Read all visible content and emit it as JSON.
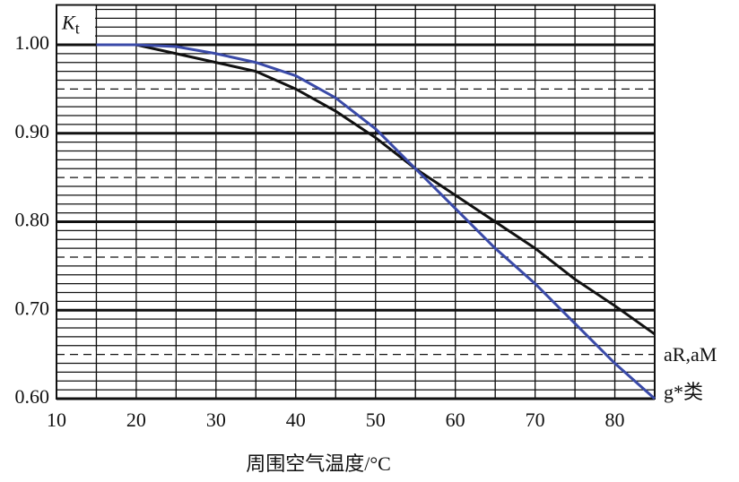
{
  "chart_data": {
    "type": "line",
    "y_label": {
      "symbol": "K",
      "subscript": "t"
    },
    "x_label": "周围空气温度/°C",
    "x": [
      15,
      20,
      25,
      30,
      35,
      40,
      45,
      50,
      55,
      60,
      65,
      70,
      75,
      80,
      85
    ],
    "series": [
      {
        "name": "aR,aM",
        "color": "#111111",
        "values": [
          1.0,
          1.0,
          0.99,
          0.98,
          0.97,
          0.95,
          0.925,
          0.895,
          0.86,
          0.83,
          0.8,
          0.77,
          0.735,
          0.705,
          0.673
        ]
      },
      {
        "name": "g*类",
        "color": "#3a4aa8",
        "values": [
          1.0,
          1.0,
          0.998,
          0.99,
          0.98,
          0.965,
          0.94,
          0.905,
          0.86,
          0.815,
          0.77,
          0.73,
          0.685,
          0.64,
          0.6
        ]
      }
    ],
    "xlim": [
      10,
      85
    ],
    "ylim": [
      0.6,
      1.045
    ],
    "xticks": [
      10,
      20,
      30,
      40,
      50,
      60,
      70,
      80
    ],
    "yticks": [
      {
        "value": 1.0,
        "label": "1.00"
      },
      {
        "value": 0.9,
        "label": "0.90"
      },
      {
        "value": 0.8,
        "label": "0.80"
      },
      {
        "value": 0.7,
        "label": "0.70"
      },
      {
        "value": 0.6,
        "label": "0.60"
      }
    ],
    "dashed_lines": [
      0.95,
      0.85,
      0.76,
      0.65
    ],
    "minor_ystep": 0.01,
    "minor_xstep": 5,
    "grid": true
  }
}
